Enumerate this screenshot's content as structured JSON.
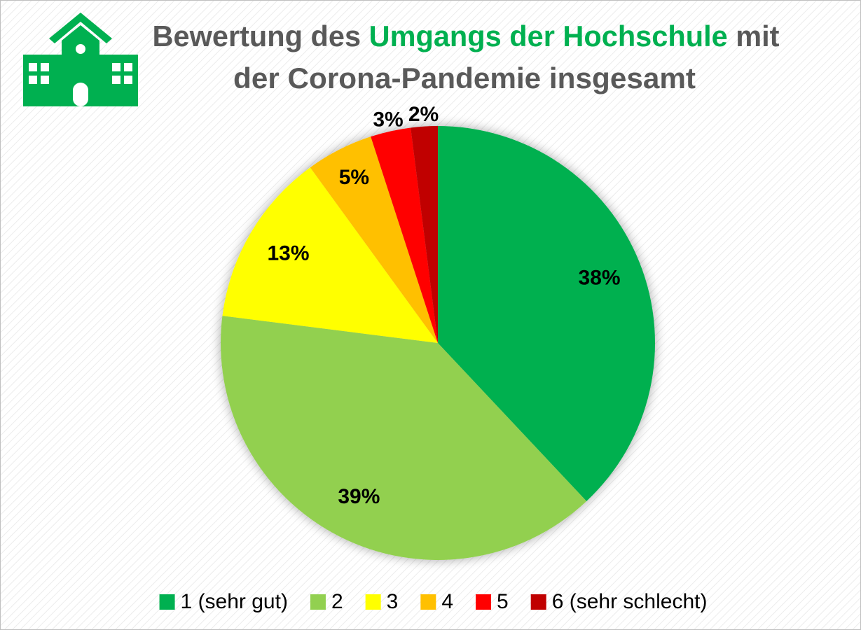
{
  "chart_data": {
    "type": "pie",
    "title": {
      "line1": [
        "Bewertung des",
        "Umgangs der Hochschule",
        "mit"
      ],
      "line2": "der Corona-Pandemie insgesamt"
    },
    "categories": [
      "1 (sehr gut)",
      "2",
      "3",
      "4",
      "5",
      "6 (sehr schlecht)"
    ],
    "values": [
      38,
      39,
      13,
      5,
      3,
      2
    ],
    "value_labels": [
      "38%",
      "39%",
      "13%",
      "5%",
      "3%",
      "2%"
    ],
    "colors": [
      "#00b050",
      "#92d050",
      "#ffff00",
      "#ffc000",
      "#ff0000",
      "#c00000"
    ],
    "legend": "bottom"
  }
}
